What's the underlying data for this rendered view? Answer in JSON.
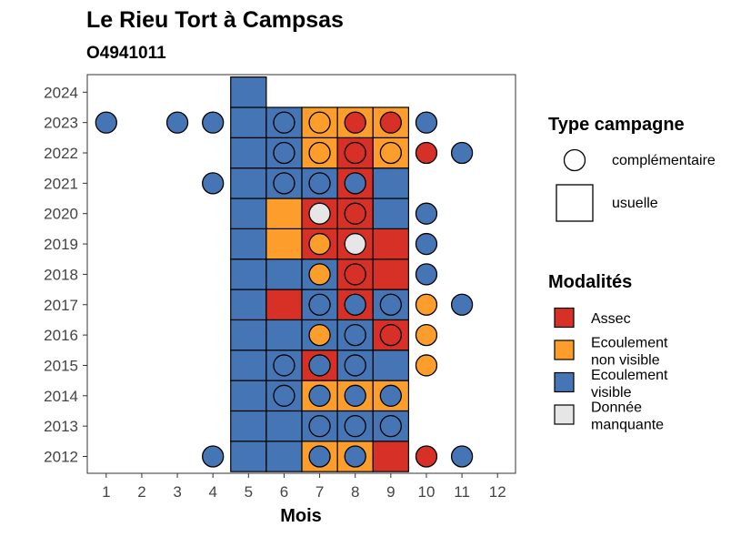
{
  "chart_data": {
    "type": "heatmap",
    "title": "Le Rieu Tort à Campsas",
    "subtitle": "O4941011",
    "xlabel": "Mois",
    "ylabel": "",
    "x_ticks": [
      1,
      2,
      3,
      4,
      5,
      6,
      7,
      8,
      9,
      10,
      11,
      12
    ],
    "y_ticks": [
      2012,
      2013,
      2014,
      2015,
      2016,
      2017,
      2018,
      2019,
      2020,
      2021,
      2022,
      2023,
      2024
    ],
    "xlim": [
      0.5,
      12.5
    ],
    "ylim": [
      2011.5,
      2024.5
    ],
    "grid": false,
    "legend_position": "right",
    "colors": {
      "Assec": "#d73027",
      "Ecoulement non visible": "#fd9e2c",
      "Ecoulement visible": "#4575b4",
      "Donnée manquante": "#e6e6e6"
    },
    "legend_shape": {
      "title": "Type campagne",
      "items": [
        {
          "label": "complémentaire",
          "shape": "circle"
        },
        {
          "label": "usuelle",
          "shape": "square"
        }
      ]
    },
    "legend_fill": {
      "title": "Modalités",
      "items": [
        {
          "key": "Assec",
          "lines": [
            "Assec"
          ]
        },
        {
          "key": "Ecoulement non visible",
          "lines": [
            "Ecoulement",
            "non visible"
          ]
        },
        {
          "key": "Ecoulement visible",
          "lines": [
            "Ecoulement",
            "visible"
          ]
        },
        {
          "key": "Donnée manquante",
          "lines": [
            "Donnée",
            "manquante"
          ]
        }
      ]
    },
    "usuelle": [
      {
        "year": 2012,
        "month": 5,
        "modalite": "Ecoulement visible"
      },
      {
        "year": 2012,
        "month": 6,
        "modalite": "Ecoulement visible"
      },
      {
        "year": 2012,
        "month": 7,
        "modalite": "Ecoulement non visible"
      },
      {
        "year": 2012,
        "month": 8,
        "modalite": "Ecoulement non visible"
      },
      {
        "year": 2012,
        "month": 9,
        "modalite": "Assec"
      },
      {
        "year": 2013,
        "month": 5,
        "modalite": "Ecoulement visible"
      },
      {
        "year": 2013,
        "month": 6,
        "modalite": "Ecoulement visible"
      },
      {
        "year": 2013,
        "month": 7,
        "modalite": "Ecoulement visible"
      },
      {
        "year": 2013,
        "month": 8,
        "modalite": "Ecoulement visible"
      },
      {
        "year": 2013,
        "month": 9,
        "modalite": "Ecoulement visible"
      },
      {
        "year": 2014,
        "month": 5,
        "modalite": "Ecoulement visible"
      },
      {
        "year": 2014,
        "month": 6,
        "modalite": "Ecoulement visible"
      },
      {
        "year": 2014,
        "month": 7,
        "modalite": "Ecoulement non visible"
      },
      {
        "year": 2014,
        "month": 8,
        "modalite": "Ecoulement non visible"
      },
      {
        "year": 2014,
        "month": 9,
        "modalite": "Ecoulement non visible"
      },
      {
        "year": 2015,
        "month": 5,
        "modalite": "Ecoulement visible"
      },
      {
        "year": 2015,
        "month": 6,
        "modalite": "Ecoulement visible"
      },
      {
        "year": 2015,
        "month": 7,
        "modalite": "Assec"
      },
      {
        "year": 2015,
        "month": 8,
        "modalite": "Ecoulement visible"
      },
      {
        "year": 2015,
        "month": 9,
        "modalite": "Ecoulement visible"
      },
      {
        "year": 2016,
        "month": 5,
        "modalite": "Ecoulement visible"
      },
      {
        "year": 2016,
        "month": 6,
        "modalite": "Ecoulement visible"
      },
      {
        "year": 2016,
        "month": 7,
        "modalite": "Ecoulement visible"
      },
      {
        "year": 2016,
        "month": 8,
        "modalite": "Ecoulement visible"
      },
      {
        "year": 2016,
        "month": 9,
        "modalite": "Assec"
      },
      {
        "year": 2017,
        "month": 5,
        "modalite": "Ecoulement visible"
      },
      {
        "year": 2017,
        "month": 6,
        "modalite": "Assec"
      },
      {
        "year": 2017,
        "month": 7,
        "modalite": "Ecoulement visible"
      },
      {
        "year": 2017,
        "month": 8,
        "modalite": "Assec"
      },
      {
        "year": 2017,
        "month": 9,
        "modalite": "Ecoulement visible"
      },
      {
        "year": 2018,
        "month": 5,
        "modalite": "Ecoulement visible"
      },
      {
        "year": 2018,
        "month": 6,
        "modalite": "Ecoulement visible"
      },
      {
        "year": 2018,
        "month": 7,
        "modalite": "Ecoulement visible"
      },
      {
        "year": 2018,
        "month": 8,
        "modalite": "Assec"
      },
      {
        "year": 2018,
        "month": 9,
        "modalite": "Assec"
      },
      {
        "year": 2019,
        "month": 5,
        "modalite": "Ecoulement visible"
      },
      {
        "year": 2019,
        "month": 6,
        "modalite": "Ecoulement non visible"
      },
      {
        "year": 2019,
        "month": 7,
        "modalite": "Assec"
      },
      {
        "year": 2019,
        "month": 8,
        "modalite": "Assec"
      },
      {
        "year": 2019,
        "month": 9,
        "modalite": "Assec"
      },
      {
        "year": 2020,
        "month": 5,
        "modalite": "Ecoulement visible"
      },
      {
        "year": 2020,
        "month": 6,
        "modalite": "Ecoulement non visible"
      },
      {
        "year": 2020,
        "month": 7,
        "modalite": "Assec"
      },
      {
        "year": 2020,
        "month": 8,
        "modalite": "Assec"
      },
      {
        "year": 2020,
        "month": 9,
        "modalite": "Ecoulement visible"
      },
      {
        "year": 2021,
        "month": 5,
        "modalite": "Ecoulement visible"
      },
      {
        "year": 2021,
        "month": 6,
        "modalite": "Ecoulement visible"
      },
      {
        "year": 2021,
        "month": 7,
        "modalite": "Ecoulement visible"
      },
      {
        "year": 2021,
        "month": 8,
        "modalite": "Assec"
      },
      {
        "year": 2021,
        "month": 9,
        "modalite": "Ecoulement visible"
      },
      {
        "year": 2022,
        "month": 5,
        "modalite": "Ecoulement visible"
      },
      {
        "year": 2022,
        "month": 6,
        "modalite": "Ecoulement visible"
      },
      {
        "year": 2022,
        "month": 7,
        "modalite": "Ecoulement non visible"
      },
      {
        "year": 2022,
        "month": 8,
        "modalite": "Assec"
      },
      {
        "year": 2022,
        "month": 9,
        "modalite": "Ecoulement non visible"
      },
      {
        "year": 2023,
        "month": 5,
        "modalite": "Ecoulement visible"
      },
      {
        "year": 2023,
        "month": 6,
        "modalite": "Ecoulement visible"
      },
      {
        "year": 2023,
        "month": 7,
        "modalite": "Ecoulement non visible"
      },
      {
        "year": 2023,
        "month": 8,
        "modalite": "Ecoulement non visible"
      },
      {
        "year": 2023,
        "month": 9,
        "modalite": "Ecoulement non visible"
      },
      {
        "year": 2024,
        "month": 5,
        "modalite": "Ecoulement visible"
      }
    ],
    "complementaire": [
      {
        "year": 2012,
        "month": 4,
        "modalite": "Ecoulement visible"
      },
      {
        "year": 2012,
        "month": 7,
        "modalite": "Ecoulement visible"
      },
      {
        "year": 2012,
        "month": 8,
        "modalite": "Ecoulement visible"
      },
      {
        "year": 2012,
        "month": 10,
        "modalite": "Assec"
      },
      {
        "year": 2012,
        "month": 11,
        "modalite": "Ecoulement visible"
      },
      {
        "year": 2013,
        "month": 7,
        "modalite": "Ecoulement visible"
      },
      {
        "year": 2013,
        "month": 8,
        "modalite": "Ecoulement visible"
      },
      {
        "year": 2013,
        "month": 9,
        "modalite": "Ecoulement visible"
      },
      {
        "year": 2014,
        "month": 6,
        "modalite": "Ecoulement visible"
      },
      {
        "year": 2014,
        "month": 7,
        "modalite": "Ecoulement visible"
      },
      {
        "year": 2014,
        "month": 8,
        "modalite": "Ecoulement visible"
      },
      {
        "year": 2014,
        "month": 9,
        "modalite": "Ecoulement visible"
      },
      {
        "year": 2015,
        "month": 6,
        "modalite": "Ecoulement visible"
      },
      {
        "year": 2015,
        "month": 7,
        "modalite": "Ecoulement visible"
      },
      {
        "year": 2015,
        "month": 8,
        "modalite": "Ecoulement visible"
      },
      {
        "year": 2015,
        "month": 10,
        "modalite": "Ecoulement non visible"
      },
      {
        "year": 2016,
        "month": 7,
        "modalite": "Ecoulement non visible"
      },
      {
        "year": 2016,
        "month": 8,
        "modalite": "Ecoulement visible"
      },
      {
        "year": 2016,
        "month": 9,
        "modalite": "Assec"
      },
      {
        "year": 2016,
        "month": 10,
        "modalite": "Ecoulement non visible"
      },
      {
        "year": 2017,
        "month": 7,
        "modalite": "Ecoulement visible"
      },
      {
        "year": 2017,
        "month": 8,
        "modalite": "Ecoulement visible"
      },
      {
        "year": 2017,
        "month": 9,
        "modalite": "Ecoulement visible"
      },
      {
        "year": 2017,
        "month": 10,
        "modalite": "Ecoulement non visible"
      },
      {
        "year": 2017,
        "month": 11,
        "modalite": "Ecoulement visible"
      },
      {
        "year": 2018,
        "month": 7,
        "modalite": "Ecoulement non visible"
      },
      {
        "year": 2018,
        "month": 8,
        "modalite": "Assec"
      },
      {
        "year": 2018,
        "month": 10,
        "modalite": "Ecoulement visible"
      },
      {
        "year": 2019,
        "month": 7,
        "modalite": "Ecoulement non visible"
      },
      {
        "year": 2019,
        "month": 8,
        "modalite": "Donnée manquante"
      },
      {
        "year": 2019,
        "month": 10,
        "modalite": "Ecoulement visible"
      },
      {
        "year": 2020,
        "month": 7,
        "modalite": "Donnée manquante"
      },
      {
        "year": 2020,
        "month": 8,
        "modalite": "Assec"
      },
      {
        "year": 2020,
        "month": 10,
        "modalite": "Ecoulement visible"
      },
      {
        "year": 2021,
        "month": 4,
        "modalite": "Ecoulement visible"
      },
      {
        "year": 2021,
        "month": 6,
        "modalite": "Ecoulement visible"
      },
      {
        "year": 2021,
        "month": 7,
        "modalite": "Ecoulement visible"
      },
      {
        "year": 2021,
        "month": 8,
        "modalite": "Ecoulement visible"
      },
      {
        "year": 2022,
        "month": 6,
        "modalite": "Ecoulement visible"
      },
      {
        "year": 2022,
        "month": 7,
        "modalite": "Ecoulement non visible"
      },
      {
        "year": 2022,
        "month": 8,
        "modalite": "Assec"
      },
      {
        "year": 2022,
        "month": 9,
        "modalite": "Ecoulement non visible"
      },
      {
        "year": 2022,
        "month": 10,
        "modalite": "Assec"
      },
      {
        "year": 2022,
        "month": 11,
        "modalite": "Ecoulement visible"
      },
      {
        "year": 2023,
        "month": 1,
        "modalite": "Ecoulement visible"
      },
      {
        "year": 2023,
        "month": 3,
        "modalite": "Ecoulement visible"
      },
      {
        "year": 2023,
        "month": 4,
        "modalite": "Ecoulement visible"
      },
      {
        "year": 2023,
        "month": 6,
        "modalite": "Ecoulement visible"
      },
      {
        "year": 2023,
        "month": 7,
        "modalite": "Ecoulement non visible"
      },
      {
        "year": 2023,
        "month": 8,
        "modalite": "Assec"
      },
      {
        "year": 2023,
        "month": 9,
        "modalite": "Assec"
      },
      {
        "year": 2023,
        "month": 10,
        "modalite": "Ecoulement visible"
      }
    ]
  }
}
